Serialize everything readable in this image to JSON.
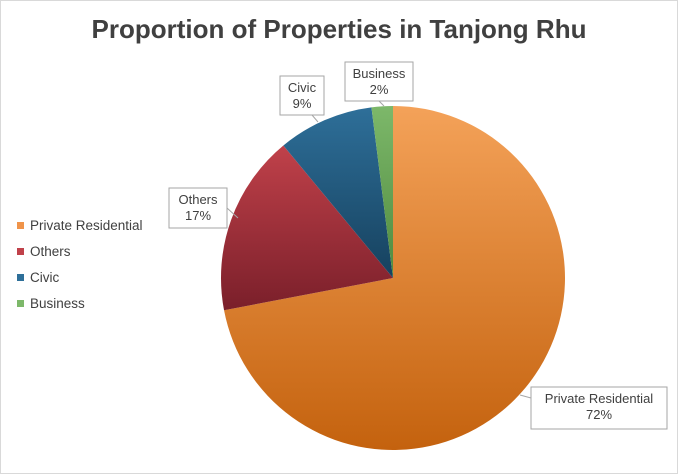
{
  "chart_data": {
    "type": "pie",
    "title": "Proportion of Properties in Tanjong Rhu",
    "categories": [
      "Private Residential",
      "Others",
      "Civic",
      "Business"
    ],
    "values": [
      72,
      17,
      9,
      2
    ],
    "value_labels": [
      "72%",
      "17%",
      "9%",
      "2%"
    ],
    "legend_position": "left",
    "colors": {
      "Private Residential": [
        "#f4a259",
        "#c4620e"
      ],
      "Others": [
        "#c0414a",
        "#7a1f2a"
      ],
      "Civic": [
        "#2e6f99",
        "#16415e"
      ],
      "Business": [
        "#7db86a",
        "#4f8a3f"
      ]
    },
    "legend_colors": [
      "#f0944a",
      "#c0414a",
      "#2e6f99",
      "#7db86a"
    ]
  }
}
